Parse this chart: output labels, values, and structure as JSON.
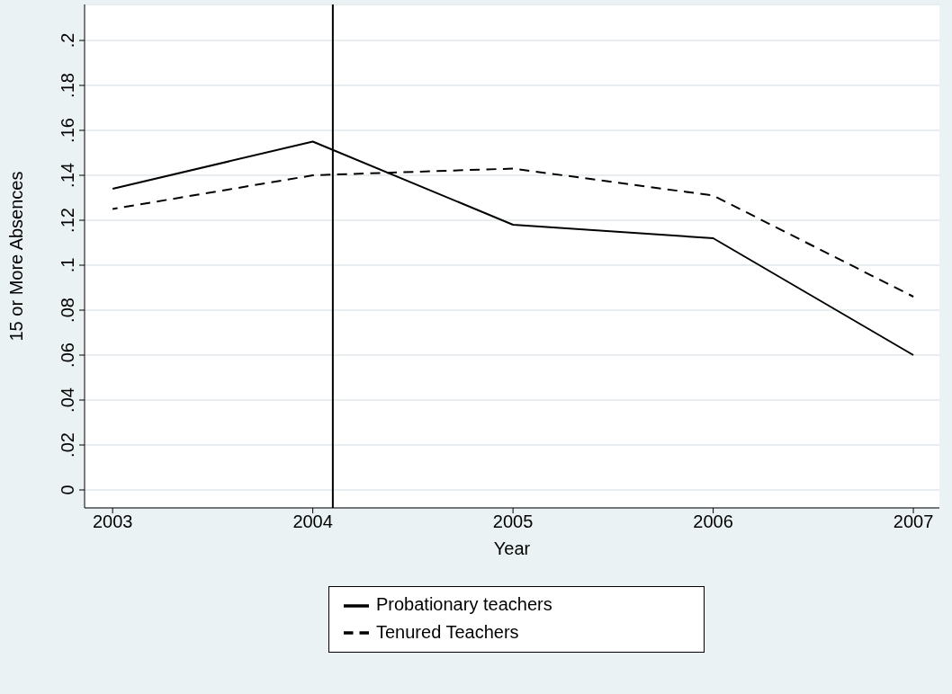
{
  "chart_data": {
    "type": "line",
    "xlabel": "Year",
    "ylabel": "15 or More Absences",
    "x": [
      2003,
      2004,
      2005,
      2006,
      2007
    ],
    "series": [
      {
        "name": "Probationary teachers",
        "color": "#000000",
        "line_style": "solid",
        "values": [
          0.134,
          0.155,
          0.118,
          0.112,
          0.06
        ]
      },
      {
        "name": "Tenured Teachers",
        "color": "#000000",
        "line_style": "dashed",
        "values": [
          0.125,
          0.14,
          0.143,
          0.131,
          0.086
        ]
      }
    ],
    "xlim": [
      2002.86,
      2007.13
    ],
    "xticks": [
      2003,
      2004,
      2005,
      2006,
      2007
    ],
    "ylim": [
      -0.008,
      0.216
    ],
    "yticks": [
      0,
      {
        "value": 0.02,
        "label": ".02"
      },
      {
        "value": 0.04,
        "label": ".04"
      },
      {
        "value": 0.06,
        "label": ".06"
      },
      {
        "value": 0.08,
        "label": ".08"
      },
      {
        "value": 0.1,
        "label": ".1"
      },
      {
        "value": 0.12,
        "label": ".12"
      },
      {
        "value": 0.14,
        "label": ".14"
      },
      {
        "value": 0.16,
        "label": ".16"
      },
      {
        "value": 0.18,
        "label": ".18"
      },
      {
        "value": 0.2,
        "label": ".2"
      }
    ],
    "ref_lines": [
      {
        "axis": "x",
        "value": 2004.1,
        "color": "#000000"
      }
    ],
    "grid": "y",
    "legend": "bottom",
    "marker": "none"
  }
}
